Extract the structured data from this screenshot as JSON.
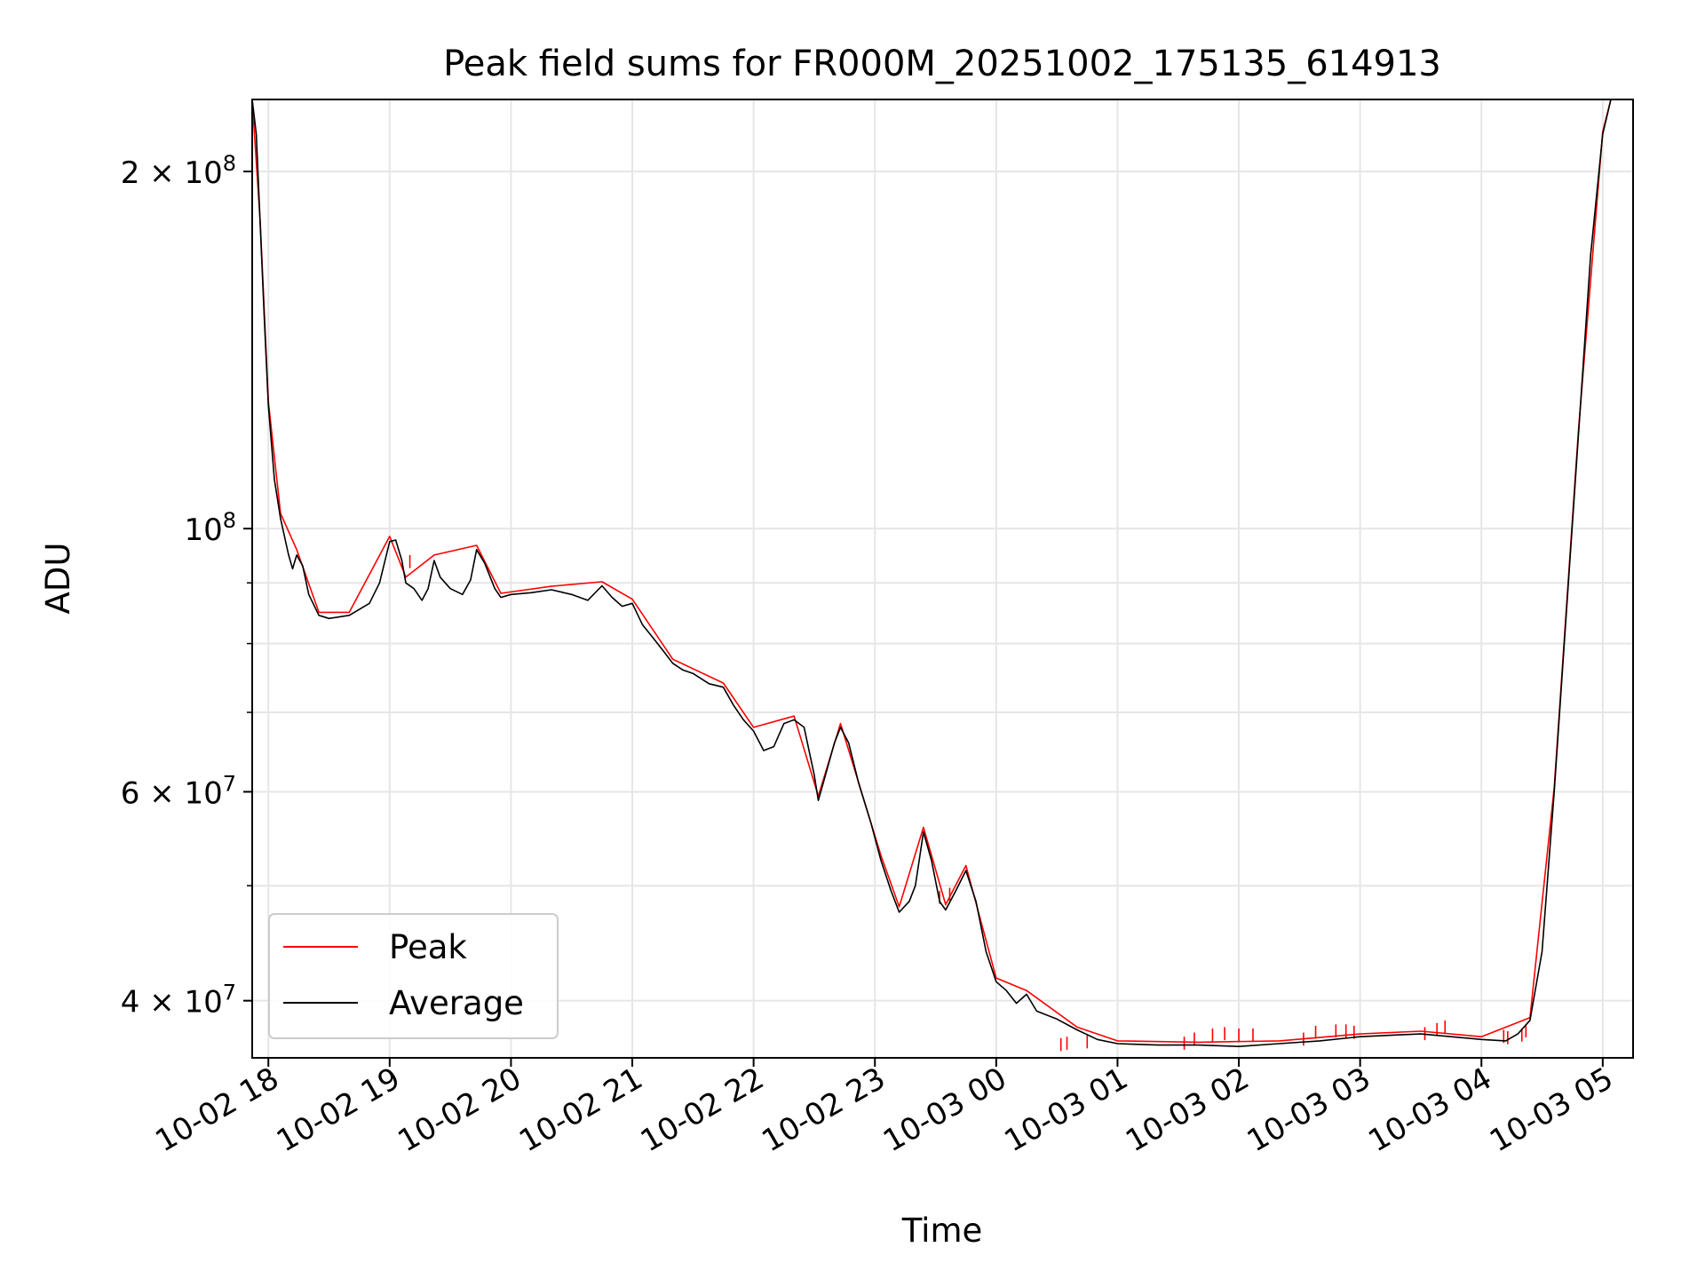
{
  "chart_data": {
    "type": "line",
    "title": "Peak field sums for FR000M_20251002_175135_614913",
    "xlabel": "Time",
    "ylabel": "ADU",
    "x_start": "2025-10-02 17:52",
    "x_end": "2025-10-03 05:15",
    "yscale": "log",
    "ylim": [
      35800000,
      230000000
    ],
    "x_ticks": [
      {
        "value": "2025-10-02 18:00",
        "label": "10-02 18"
      },
      {
        "value": "2025-10-02 19:00",
        "label": "10-02 19"
      },
      {
        "value": "2025-10-02 20:00",
        "label": "10-02 20"
      },
      {
        "value": "2025-10-02 21:00",
        "label": "10-02 21"
      },
      {
        "value": "2025-10-02 22:00",
        "label": "10-02 22"
      },
      {
        "value": "2025-10-02 23:00",
        "label": "10-02 23"
      },
      {
        "value": "2025-10-03 00:00",
        "label": "10-03 00"
      },
      {
        "value": "2025-10-03 01:00",
        "label": "10-03 01"
      },
      {
        "value": "2025-10-03 02:00",
        "label": "10-03 02"
      },
      {
        "value": "2025-10-03 03:00",
        "label": "10-03 03"
      },
      {
        "value": "2025-10-03 04:00",
        "label": "10-03 04"
      },
      {
        "value": "2025-10-03 05:00",
        "label": "10-03 05"
      }
    ],
    "y_major_ticks": [
      {
        "value": 40000000,
        "base": "4 × 10",
        "exp": "7"
      },
      {
        "value": 60000000,
        "base": "6 × 10",
        "exp": "7"
      },
      {
        "value": 100000000,
        "base": "10",
        "exp": "8"
      },
      {
        "value": 200000000,
        "base": "2 × 10",
        "exp": "8"
      }
    ],
    "y_minor_ticks": [
      50000000,
      70000000,
      80000000,
      90000000
    ],
    "grid": true,
    "legend_position": "bottom-left",
    "series": [
      {
        "name": "Average",
        "color": "#000000",
        "points": [
          [
            "2025-10-02 17:52",
            230000000
          ],
          [
            "2025-10-02 17:54",
            215000000
          ],
          [
            "2025-10-02 17:56",
            180000000
          ],
          [
            "2025-10-02 17:58",
            150000000
          ],
          [
            "2025-10-02 18:00",
            127000000
          ],
          [
            "2025-10-02 18:03",
            110000000
          ],
          [
            "2025-10-02 18:06",
            102000000
          ],
          [
            "2025-10-02 18:10",
            95000000
          ],
          [
            "2025-10-02 18:12",
            92500000
          ],
          [
            "2025-10-02 18:14",
            95000000
          ],
          [
            "2025-10-02 18:17",
            93000000
          ],
          [
            "2025-10-02 18:20",
            88000000
          ],
          [
            "2025-10-02 18:25",
            84500000
          ],
          [
            "2025-10-02 18:30",
            84000000
          ],
          [
            "2025-10-02 18:40",
            84500000
          ],
          [
            "2025-10-02 18:50",
            86500000
          ],
          [
            "2025-10-02 18:55",
            90000000
          ],
          [
            "2025-10-02 19:00",
            97500000
          ],
          [
            "2025-10-02 19:03",
            97800000
          ],
          [
            "2025-10-02 19:06",
            94000000
          ],
          [
            "2025-10-02 19:08",
            90000000
          ],
          [
            "2025-10-02 19:12",
            89000000
          ],
          [
            "2025-10-02 19:16",
            87000000
          ],
          [
            "2025-10-02 19:19",
            89000000
          ],
          [
            "2025-10-02 19:22",
            94000000
          ],
          [
            "2025-10-02 19:25",
            91000000
          ],
          [
            "2025-10-02 19:30",
            89000000
          ],
          [
            "2025-10-02 19:36",
            88000000
          ],
          [
            "2025-10-02 19:40",
            90500000
          ],
          [
            "2025-10-02 19:43",
            96000000
          ],
          [
            "2025-10-02 19:47",
            93500000
          ],
          [
            "2025-10-02 19:52",
            89000000
          ],
          [
            "2025-10-02 19:55",
            87500000
          ],
          [
            "2025-10-02 20:00",
            88000000
          ],
          [
            "2025-10-02 20:10",
            88300000
          ],
          [
            "2025-10-02 20:20",
            88800000
          ],
          [
            "2025-10-02 20:30",
            88000000
          ],
          [
            "2025-10-02 20:38",
            87000000
          ],
          [
            "2025-10-02 20:45",
            89500000
          ],
          [
            "2025-10-02 20:50",
            87500000
          ],
          [
            "2025-10-02 20:55",
            86000000
          ],
          [
            "2025-10-02 21:00",
            86500000
          ],
          [
            "2025-10-02 21:05",
            83000000
          ],
          [
            "2025-10-02 21:10",
            81000000
          ],
          [
            "2025-10-02 21:15",
            79000000
          ],
          [
            "2025-10-02 21:20",
            77000000
          ],
          [
            "2025-10-02 21:25",
            76000000
          ],
          [
            "2025-10-02 21:30",
            75500000
          ],
          [
            "2025-10-02 21:38",
            74000000
          ],
          [
            "2025-10-02 21:45",
            73500000
          ],
          [
            "2025-10-02 21:50",
            71000000
          ],
          [
            "2025-10-02 21:55",
            69000000
          ],
          [
            "2025-10-02 22:00",
            67500000
          ],
          [
            "2025-10-02 22:05",
            65000000
          ],
          [
            "2025-10-02 22:10",
            65500000
          ],
          [
            "2025-10-02 22:15",
            68500000
          ],
          [
            "2025-10-02 22:20",
            69000000
          ],
          [
            "2025-10-02 22:25",
            68000000
          ],
          [
            "2025-10-02 22:30",
            62000000
          ],
          [
            "2025-10-02 22:32",
            59000000
          ],
          [
            "2025-10-02 22:35",
            61500000
          ],
          [
            "2025-10-02 22:40",
            66000000
          ],
          [
            "2025-10-02 22:43",
            68000000
          ],
          [
            "2025-10-02 22:47",
            66000000
          ],
          [
            "2025-10-02 22:52",
            61000000
          ],
          [
            "2025-10-02 22:58",
            56500000
          ],
          [
            "2025-10-02 23:03",
            52500000
          ],
          [
            "2025-10-02 23:08",
            49500000
          ],
          [
            "2025-10-02 23:12",
            47500000
          ],
          [
            "2025-10-02 23:17",
            48500000
          ],
          [
            "2025-10-02 23:20",
            50000000
          ],
          [
            "2025-10-02 23:24",
            55500000
          ],
          [
            "2025-10-02 23:28",
            52500000
          ],
          [
            "2025-10-02 23:32",
            48500000
          ],
          [
            "2025-10-02 23:35",
            47700000
          ],
          [
            "2025-10-02 23:40",
            49500000
          ],
          [
            "2025-10-02 23:45",
            51500000
          ],
          [
            "2025-10-02 23:50",
            48500000
          ],
          [
            "2025-10-02 23:55",
            44000000
          ],
          [
            "2025-10-03 00:00",
            41500000
          ],
          [
            "2025-10-03 00:05",
            40800000
          ],
          [
            "2025-10-03 00:10",
            39800000
          ],
          [
            "2025-10-03 00:15",
            40500000
          ],
          [
            "2025-10-03 00:20",
            39200000
          ],
          [
            "2025-10-03 00:30",
            38600000
          ],
          [
            "2025-10-03 00:40",
            37800000
          ],
          [
            "2025-10-03 00:50",
            37100000
          ],
          [
            "2025-10-03 01:00",
            36800000
          ],
          [
            "2025-10-03 01:20",
            36700000
          ],
          [
            "2025-10-03 01:40",
            36700000
          ],
          [
            "2025-10-03 02:00",
            36600000
          ],
          [
            "2025-10-03 02:20",
            36800000
          ],
          [
            "2025-10-03 02:40",
            37000000
          ],
          [
            "2025-10-03 03:00",
            37300000
          ],
          [
            "2025-10-03 03:15",
            37400000
          ],
          [
            "2025-10-03 03:30",
            37500000
          ],
          [
            "2025-10-03 03:45",
            37300000
          ],
          [
            "2025-10-03 04:00",
            37100000
          ],
          [
            "2025-10-03 04:12",
            37000000
          ],
          [
            "2025-10-03 04:18",
            37500000
          ],
          [
            "2025-10-03 04:24",
            38500000
          ],
          [
            "2025-10-03 04:30",
            44000000
          ],
          [
            "2025-10-03 04:36",
            60000000
          ],
          [
            "2025-10-03 04:42",
            85000000
          ],
          [
            "2025-10-03 04:48",
            120000000
          ],
          [
            "2025-10-03 04:54",
            170000000
          ],
          [
            "2025-10-03 05:00",
            215000000
          ],
          [
            "2025-10-03 05:04",
            230000000
          ]
        ]
      },
      {
        "name": "Peak",
        "color": "#ff0000",
        "points": [
          [
            "2025-10-02 17:52",
            230000000
          ],
          [
            "2025-10-02 17:56",
            181000000
          ],
          [
            "2025-10-02 18:00",
            128000000
          ],
          [
            "2025-10-02 18:06",
            103000000
          ],
          [
            "2025-10-02 18:14",
            96000000
          ],
          [
            "2025-10-02 18:25",
            85000000
          ],
          [
            "2025-10-02 18:40",
            85000000
          ],
          [
            "2025-10-02 19:00",
            98500000
          ],
          [
            "2025-10-02 19:08",
            91000000
          ],
          [
            "2025-10-02 19:22",
            95000000
          ],
          [
            "2025-10-02 19:43",
            96800000
          ],
          [
            "2025-10-02 19:55",
            88200000
          ],
          [
            "2025-10-02 20:20",
            89400000
          ],
          [
            "2025-10-02 20:45",
            90200000
          ],
          [
            "2025-10-02 21:00",
            87200000
          ],
          [
            "2025-10-02 21:20",
            77600000
          ],
          [
            "2025-10-02 21:45",
            74100000
          ],
          [
            "2025-10-02 22:00",
            68000000
          ],
          [
            "2025-10-02 22:20",
            69500000
          ],
          [
            "2025-10-02 22:32",
            59500000
          ],
          [
            "2025-10-02 22:43",
            68500000
          ],
          [
            "2025-10-02 23:03",
            53000000
          ],
          [
            "2025-10-02 23:12",
            48000000
          ],
          [
            "2025-10-02 23:24",
            56000000
          ],
          [
            "2025-10-02 23:35",
            48200000
          ],
          [
            "2025-10-02 23:45",
            52000000
          ],
          [
            "2025-10-03 00:00",
            41800000
          ],
          [
            "2025-10-03 00:15",
            40800000
          ],
          [
            "2025-10-03 00:40",
            38000000
          ],
          [
            "2025-10-03 01:00",
            37000000
          ],
          [
            "2025-10-03 01:40",
            36900000
          ],
          [
            "2025-10-03 02:20",
            37000000
          ],
          [
            "2025-10-03 03:00",
            37500000
          ],
          [
            "2025-10-03 03:30",
            37700000
          ],
          [
            "2025-10-03 04:00",
            37300000
          ],
          [
            "2025-10-03 04:24",
            38700000
          ],
          [
            "2025-10-03 04:36",
            60500000
          ],
          [
            "2025-10-03 04:48",
            121000000
          ],
          [
            "2025-10-03 05:00",
            216000000
          ],
          [
            "2025-10-03 05:04",
            230000000
          ]
        ]
      }
    ],
    "peak_spikes": [
      [
        "2025-10-02 19:10",
        95000000
      ],
      [
        "2025-10-02 23:32",
        49500000
      ],
      [
        "2025-10-02 23:37",
        49800000
      ],
      [
        "2025-10-03 00:32",
        37200000
      ],
      [
        "2025-10-03 00:35",
        37300000
      ],
      [
        "2025-10-03 00:45",
        37400000
      ],
      [
        "2025-10-03 01:33",
        37300000
      ],
      [
        "2025-10-03 01:38",
        37600000
      ],
      [
        "2025-10-03 01:47",
        37900000
      ],
      [
        "2025-10-03 01:53",
        38000000
      ],
      [
        "2025-10-03 02:00",
        37900000
      ],
      [
        "2025-10-03 02:07",
        37900000
      ],
      [
        "2025-10-03 02:32",
        37600000
      ],
      [
        "2025-10-03 02:38",
        38100000
      ],
      [
        "2025-10-03 02:48",
        38200000
      ],
      [
        "2025-10-03 02:53",
        38200000
      ],
      [
        "2025-10-03 02:57",
        38100000
      ],
      [
        "2025-10-03 03:32",
        38000000
      ],
      [
        "2025-10-03 03:38",
        38300000
      ],
      [
        "2025-10-03 03:42",
        38500000
      ],
      [
        "2025-10-03 04:11",
        37800000
      ],
      [
        "2025-10-03 04:13",
        37700000
      ],
      [
        "2025-10-03 04:20",
        37900000
      ],
      [
        "2025-10-03 04:22",
        38200000
      ]
    ]
  }
}
